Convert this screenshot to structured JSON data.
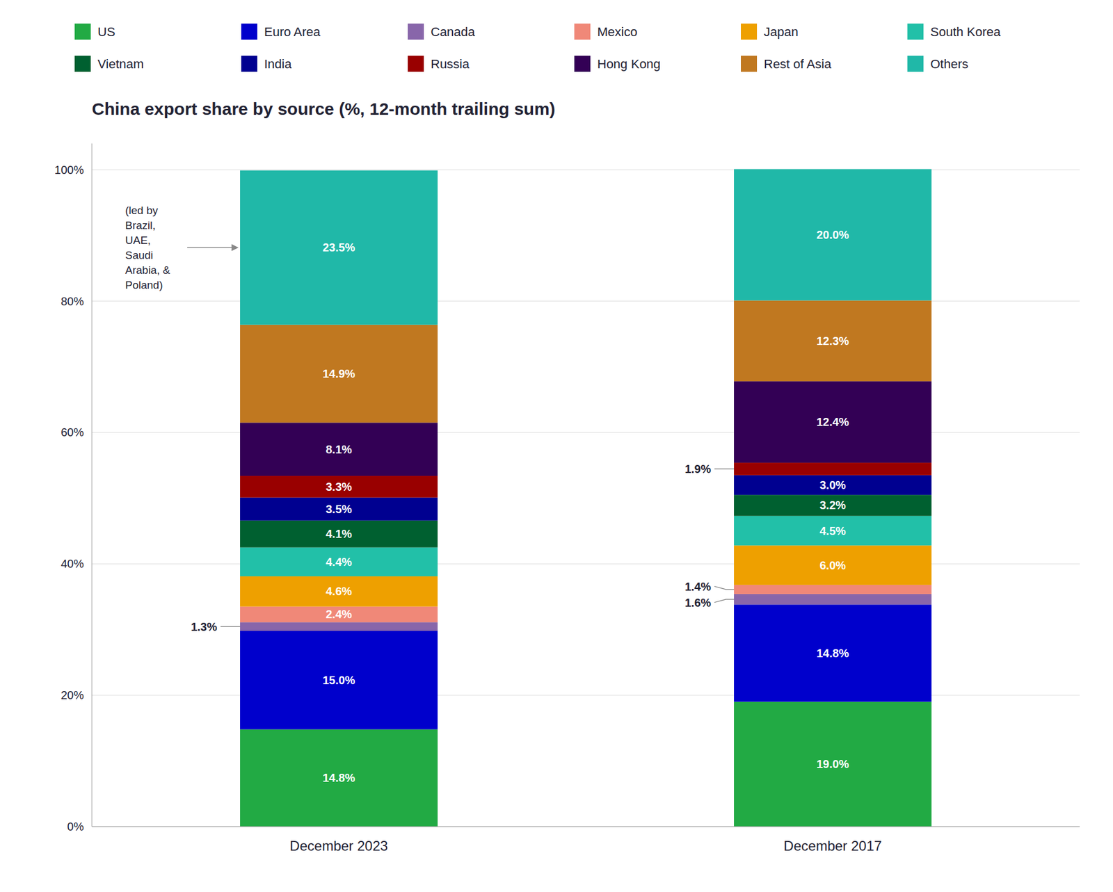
{
  "chart_data": {
    "type": "bar",
    "title": "China export share by source (%, 12-month trailing sum)",
    "categories": [
      "December 2023",
      "December 2017"
    ],
    "stacked": true,
    "data_labels": true,
    "grid": true,
    "legend": "top",
    "series": [
      {
        "name": "US",
        "color": "#22AA44",
        "values": [
          14.8,
          19.0
        ],
        "value_labels": [
          "14.8%",
          "19.0%"
        ]
      },
      {
        "name": "Euro Area",
        "color": "#0000CC",
        "values": [
          15.0,
          14.8
        ],
        "value_labels": [
          "15.0%",
          "14.8%"
        ]
      },
      {
        "name": "Canada",
        "color": "#8866AA",
        "values": [
          1.3,
          1.6
        ],
        "value_labels": [
          "1.3%",
          "1.6%"
        ]
      },
      {
        "name": "Mexico",
        "color": "#F08878",
        "values": [
          2.4,
          1.4
        ],
        "value_labels": [
          "2.4%",
          "1.4%"
        ]
      },
      {
        "name": "Japan",
        "color": "#EEA000",
        "values": [
          4.6,
          6.0
        ],
        "value_labels": [
          "4.6%",
          "6.0%"
        ]
      },
      {
        "name": "South Korea",
        "color": "#22C0A8",
        "values": [
          4.4,
          4.5
        ],
        "value_labels": [
          "4.4%",
          "4.5%"
        ]
      },
      {
        "name": "Vietnam",
        "color": "#006030",
        "values": [
          4.1,
          3.2
        ],
        "value_labels": [
          "4.1%",
          "3.2%"
        ]
      },
      {
        "name": "India",
        "color": "#000090",
        "values": [
          3.5,
          3.0
        ],
        "value_labels": [
          "3.5%",
          "3.0%"
        ]
      },
      {
        "name": "Russia",
        "color": "#990000",
        "values": [
          3.3,
          1.9
        ],
        "value_labels": [
          "3.3%",
          "1.9%"
        ]
      },
      {
        "name": "Hong Kong",
        "color": "#330055",
        "values": [
          8.1,
          12.4
        ],
        "value_labels": [
          "8.1%",
          "12.4%"
        ]
      },
      {
        "name": "Rest of Asia",
        "color": "#C07820",
        "values": [
          14.9,
          12.3
        ],
        "value_labels": [
          "14.9%",
          "12.3%"
        ]
      },
      {
        "name": "Others",
        "color": "#20B8A8",
        "values": [
          23.5,
          20.0
        ],
        "value_labels": [
          "23.5%",
          "20.0%"
        ]
      }
    ],
    "ylim": [
      0,
      104
    ],
    "yticks": [
      {
        "value": 0,
        "label": "0%"
      },
      {
        "value": 20,
        "label": "20%"
      },
      {
        "value": 40,
        "label": "40%"
      },
      {
        "value": 60,
        "label": "60%"
      },
      {
        "value": 80,
        "label": "80%"
      },
      {
        "value": 100,
        "label": "100%"
      }
    ],
    "annotations": [
      {
        "text": "(led by\nBrazil,\nUAE,\nSaudi\nArabia, &\nPoland)",
        "series": "Others",
        "category": "December 2023"
      }
    ]
  }
}
